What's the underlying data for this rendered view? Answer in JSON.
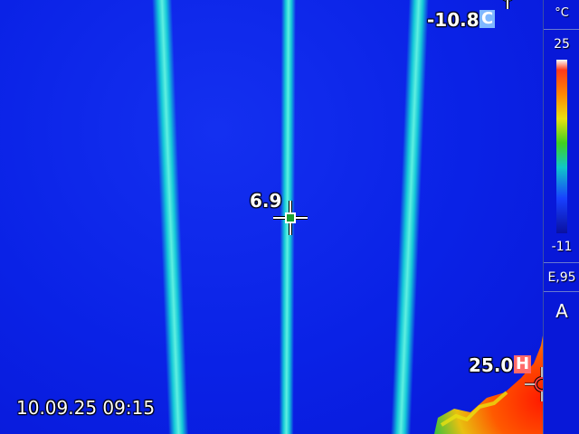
{
  "measurements": {
    "center_spot": {
      "value": "6.9"
    },
    "cold_spot": {
      "value": "-10.8",
      "tag": "C",
      "tag_color": "#7fb8ff"
    },
    "hot_spot": {
      "value": "25.0",
      "tag": "H",
      "tag_color": "#ff6a6a"
    }
  },
  "timestamp": "10.09.25 09:15",
  "scale": {
    "unit": "°C",
    "max": "25",
    "min": "-11",
    "emissivity": "E,95",
    "mode": "A"
  },
  "colors": {
    "background_cold": "#0a22e6",
    "pipe": "#14c8d8",
    "hot": "#ff2a00",
    "center_marker": "#1aa030"
  }
}
